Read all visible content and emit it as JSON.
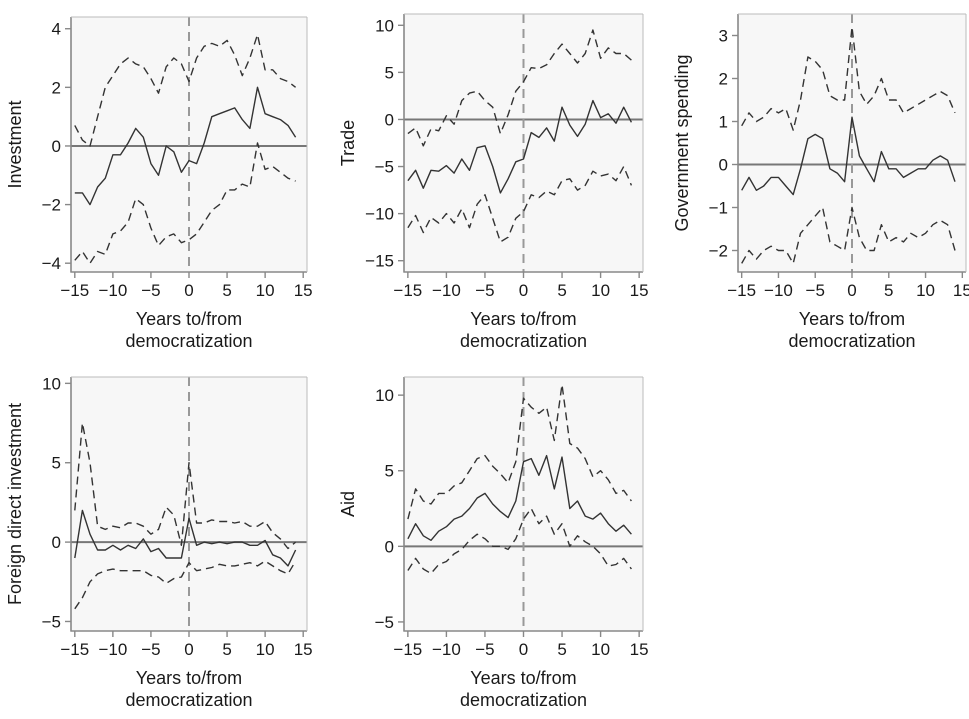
{
  "style": {
    "panel_bg": "#f7f7f7",
    "frame_color": "#888888",
    "line_color": "#333333",
    "zero_line_color": "#777777",
    "vline_color": "#999999"
  },
  "chart_data": [
    {
      "type": "line",
      "xlabel": [
        "Years to/from",
        "democratization"
      ],
      "ylabel": "Investment",
      "xlim": [
        -15.5,
        15.5
      ],
      "ylim": [
        -4.3,
        4.4
      ],
      "xticks": [
        -15,
        -10,
        -5,
        0,
        5,
        10,
        15
      ],
      "yticks": [
        -4,
        -2,
        0,
        2,
        4
      ],
      "hline": 0,
      "vline": 0,
      "x": [
        -15,
        -14,
        -13,
        -12,
        -11,
        -10,
        -9,
        -8,
        -7,
        -6,
        -5,
        -4,
        -3,
        -2,
        -1,
        0,
        1,
        2,
        3,
        4,
        5,
        6,
        7,
        8,
        9,
        10,
        11,
        12,
        13,
        14
      ],
      "series": [
        {
          "role": "estimate",
          "dash": "solid",
          "values": [
            -1.6,
            -1.6,
            -2.0,
            -1.4,
            -1.1,
            -0.3,
            -0.3,
            0.1,
            0.6,
            0.3,
            -0.6,
            -1.0,
            0.0,
            -0.2,
            -0.9,
            -0.5,
            -0.6,
            0.1,
            1.0,
            1.1,
            1.2,
            1.3,
            0.9,
            0.6,
            2.0,
            1.1,
            1.0,
            0.9,
            0.7,
            0.3
          ]
        },
        {
          "role": "upper",
          "dash": "dashed",
          "values": [
            0.7,
            0.2,
            0.0,
            1.0,
            2.0,
            2.4,
            2.8,
            3.0,
            2.8,
            2.7,
            2.3,
            1.8,
            2.7,
            3.0,
            2.8,
            2.2,
            3.0,
            3.4,
            3.5,
            3.4,
            3.6,
            3.1,
            2.4,
            3.0,
            3.8,
            2.6,
            2.6,
            2.3,
            2.2,
            2.0
          ]
        },
        {
          "role": "lower",
          "dash": "dashed",
          "values": [
            -3.9,
            -3.6,
            -4.0,
            -3.6,
            -3.7,
            -3.0,
            -2.9,
            -2.6,
            -1.8,
            -2.0,
            -2.8,
            -3.4,
            -3.1,
            -3.0,
            -3.3,
            -3.2,
            -3.0,
            -2.6,
            -2.2,
            -2.0,
            -1.5,
            -1.5,
            -1.3,
            -1.4,
            0.1,
            -0.8,
            -0.7,
            -0.9,
            -1.1,
            -1.2
          ]
        }
      ]
    },
    {
      "type": "line",
      "xlabel": [
        "Years to/from",
        "democratization"
      ],
      "ylabel": "Trade",
      "xlim": [
        -15.5,
        15.5
      ],
      "ylim": [
        -16.2,
        11.2
      ],
      "xticks": [
        -15,
        -10,
        -5,
        0,
        5,
        10,
        15
      ],
      "yticks": [
        -15,
        -10,
        -5,
        0,
        5,
        10
      ],
      "hline": 0,
      "vline": 0,
      "x": [
        -15,
        -14,
        -13,
        -12,
        -11,
        -10,
        -9,
        -8,
        -7,
        -6,
        -5,
        -4,
        -3,
        -2,
        -1,
        0,
        1,
        2,
        3,
        4,
        5,
        6,
        7,
        8,
        9,
        10,
        11,
        12,
        13,
        14
      ],
      "series": [
        {
          "role": "estimate",
          "dash": "solid",
          "values": [
            -6.5,
            -5.4,
            -7.3,
            -5.4,
            -5.5,
            -4.9,
            -5.7,
            -4.2,
            -5.4,
            -3.0,
            -2.8,
            -5.0,
            -7.8,
            -6.3,
            -4.5,
            -4.2,
            -1.4,
            -1.9,
            -0.9,
            -2.3,
            1.3,
            -0.6,
            -1.8,
            -0.5,
            2.0,
            0.2,
            0.6,
            -0.4,
            1.3,
            -0.3
          ]
        },
        {
          "role": "upper",
          "dash": "dashed",
          "values": [
            -1.5,
            -0.9,
            -2.8,
            -1.0,
            -1.2,
            0.4,
            -0.5,
            2.0,
            2.8,
            3.0,
            2.0,
            1.3,
            -1.5,
            0.5,
            3.0,
            4.0,
            5.5,
            5.4,
            5.8,
            7.0,
            8.0,
            7.0,
            6.0,
            7.0,
            9.5,
            6.5,
            7.6,
            7.0,
            7.0,
            6.3
          ]
        },
        {
          "role": "lower",
          "dash": "dashed",
          "values": [
            -11.5,
            -10.2,
            -12.0,
            -10.4,
            -11.0,
            -10.0,
            -11.0,
            -9.5,
            -11.5,
            -9.0,
            -8.0,
            -10.5,
            -13.0,
            -12.5,
            -10.5,
            -9.8,
            -8.0,
            -8.3,
            -7.6,
            -8.0,
            -6.5,
            -6.3,
            -7.5,
            -7.0,
            -5.5,
            -6.0,
            -5.8,
            -6.5,
            -5.0,
            -7.0
          ]
        }
      ]
    },
    {
      "type": "line",
      "xlabel": [
        "Years to/from",
        "democratization"
      ],
      "ylabel": "Government spending",
      "xlim": [
        -15.5,
        15.5
      ],
      "ylim": [
        -2.5,
        3.5
      ],
      "xticks": [
        -15,
        -10,
        -5,
        0,
        5,
        10,
        15
      ],
      "yticks": [
        -2,
        -1,
        0,
        1,
        2,
        3
      ],
      "hline": 0,
      "vline": 0,
      "x": [
        -15,
        -14,
        -13,
        -12,
        -11,
        -10,
        -9,
        -8,
        -7,
        -6,
        -5,
        -4,
        -3,
        -2,
        -1,
        0,
        1,
        2,
        3,
        4,
        5,
        6,
        7,
        8,
        9,
        10,
        11,
        12,
        13,
        14
      ],
      "series": [
        {
          "role": "estimate",
          "dash": "solid",
          "values": [
            -0.6,
            -0.3,
            -0.6,
            -0.5,
            -0.3,
            -0.3,
            -0.5,
            -0.7,
            -0.1,
            0.6,
            0.7,
            0.6,
            -0.1,
            -0.2,
            -0.4,
            1.1,
            0.2,
            -0.1,
            -0.4,
            0.3,
            -0.1,
            -0.1,
            -0.3,
            -0.2,
            -0.1,
            -0.1,
            0.1,
            0.2,
            0.1,
            -0.4
          ]
        },
        {
          "role": "upper",
          "dash": "dashed",
          "values": [
            0.9,
            1.2,
            1.0,
            1.1,
            1.3,
            1.2,
            1.3,
            0.8,
            1.5,
            2.5,
            2.4,
            2.2,
            1.6,
            1.5,
            1.5,
            3.2,
            1.7,
            1.4,
            1.6,
            2.0,
            1.5,
            1.5,
            1.2,
            1.3,
            1.4,
            1.5,
            1.6,
            1.7,
            1.6,
            1.2
          ]
        },
        {
          "role": "lower",
          "dash": "dashed",
          "values": [
            -2.3,
            -2.0,
            -2.2,
            -2.0,
            -1.9,
            -2.0,
            -2.0,
            -2.3,
            -1.6,
            -1.4,
            -1.2,
            -1.0,
            -1.8,
            -1.9,
            -2.0,
            -1.0,
            -1.7,
            -2.0,
            -2.0,
            -1.4,
            -1.8,
            -1.7,
            -1.8,
            -1.6,
            -1.7,
            -1.6,
            -1.4,
            -1.3,
            -1.4,
            -2.0
          ]
        }
      ]
    },
    {
      "type": "line",
      "xlabel": [
        "Years to/from",
        "democratization"
      ],
      "ylabel": "Foreign direct investment",
      "xlim": [
        -15.5,
        15.5
      ],
      "ylim": [
        -5.6,
        10.4
      ],
      "xticks": [
        -15,
        -10,
        -5,
        0,
        5,
        10,
        15
      ],
      "yticks": [
        -5,
        0,
        5,
        10
      ],
      "hline": 0,
      "vline": 0,
      "x": [
        -15,
        -14,
        -13,
        -12,
        -11,
        -10,
        -9,
        -8,
        -7,
        -6,
        -5,
        -4,
        -3,
        -2,
        -1,
        0,
        1,
        2,
        3,
        4,
        5,
        6,
        7,
        8,
        9,
        10,
        11,
        12,
        13,
        14
      ],
      "series": [
        {
          "role": "estimate",
          "dash": "solid",
          "values": [
            -1.0,
            2.0,
            0.5,
            -0.5,
            -0.5,
            -0.2,
            -0.5,
            -0.2,
            -0.4,
            0.2,
            -0.6,
            -0.4,
            -1.0,
            -1.0,
            -1.0,
            1.5,
            -0.2,
            0.0,
            -0.1,
            0.0,
            -0.1,
            0.0,
            0.0,
            -0.2,
            -0.2,
            0.1,
            -0.8,
            -1.0,
            -1.5,
            -0.5
          ]
        },
        {
          "role": "upper",
          "dash": "dashed",
          "values": [
            2.0,
            7.5,
            5.0,
            1.0,
            0.8,
            1.0,
            0.9,
            1.2,
            1.2,
            1.0,
            0.5,
            0.8,
            2.2,
            1.7,
            -0.2,
            5.0,
            1.2,
            1.2,
            1.4,
            1.3,
            1.3,
            1.2,
            1.3,
            1.0,
            1.0,
            1.3,
            0.6,
            0.2,
            -0.4,
            0.0
          ]
        },
        {
          "role": "lower",
          "dash": "dashed",
          "values": [
            -4.2,
            -3.5,
            -2.5,
            -2.0,
            -1.8,
            -1.7,
            -1.8,
            -1.8,
            -1.8,
            -1.8,
            -2.1,
            -2.2,
            -2.6,
            -2.3,
            -2.2,
            -1.3,
            -1.8,
            -1.7,
            -1.6,
            -1.4,
            -1.5,
            -1.5,
            -1.4,
            -1.3,
            -1.5,
            -1.2,
            -1.5,
            -1.8,
            -2.0,
            -1.2
          ]
        }
      ]
    },
    {
      "type": "line",
      "xlabel": [
        "Years to/from",
        "democratization"
      ],
      "ylabel": "Aid",
      "xlim": [
        -15.5,
        15.5
      ],
      "ylim": [
        -5.6,
        11.2
      ],
      "xticks": [
        -15,
        -10,
        -5,
        0,
        5,
        10,
        15
      ],
      "yticks": [
        -5,
        0,
        5,
        10
      ],
      "hline": 0,
      "vline": 0,
      "x": [
        -15,
        -14,
        -13,
        -12,
        -11,
        -10,
        -9,
        -8,
        -7,
        -6,
        -5,
        -4,
        -3,
        -2,
        -1,
        0,
        1,
        2,
        3,
        4,
        5,
        6,
        7,
        8,
        9,
        10,
        11,
        12,
        13,
        14
      ],
      "series": [
        {
          "role": "estimate",
          "dash": "solid",
          "values": [
            0.5,
            1.5,
            0.7,
            0.4,
            1.0,
            1.3,
            1.8,
            2.0,
            2.5,
            3.2,
            3.5,
            2.8,
            2.3,
            1.9,
            3.0,
            5.6,
            5.8,
            4.7,
            6.0,
            3.8,
            5.9,
            2.5,
            3.0,
            2.0,
            1.8,
            2.2,
            1.5,
            1.0,
            1.4,
            0.8
          ]
        },
        {
          "role": "upper",
          "dash": "dashed",
          "values": [
            1.8,
            3.8,
            3.0,
            2.8,
            3.5,
            3.5,
            4.0,
            4.2,
            5.0,
            5.8,
            6.0,
            5.3,
            4.8,
            4.2,
            5.6,
            9.8,
            9.2,
            8.8,
            9.2,
            7.0,
            10.7,
            6.8,
            6.5,
            5.8,
            4.6,
            5.0,
            4.4,
            3.5,
            3.7,
            3.0
          ]
        },
        {
          "role": "lower",
          "dash": "dashed",
          "values": [
            -1.6,
            -0.8,
            -1.5,
            -1.8,
            -1.2,
            -1.0,
            -0.5,
            -0.2,
            0.4,
            0.8,
            0.5,
            0.0,
            0.0,
            -0.2,
            0.5,
            1.8,
            2.5,
            1.5,
            2.0,
            0.8,
            1.5,
            0.0,
            0.7,
            0.3,
            0.0,
            -0.5,
            -1.3,
            -1.2,
            -0.8,
            -1.5
          ]
        }
      ]
    }
  ]
}
